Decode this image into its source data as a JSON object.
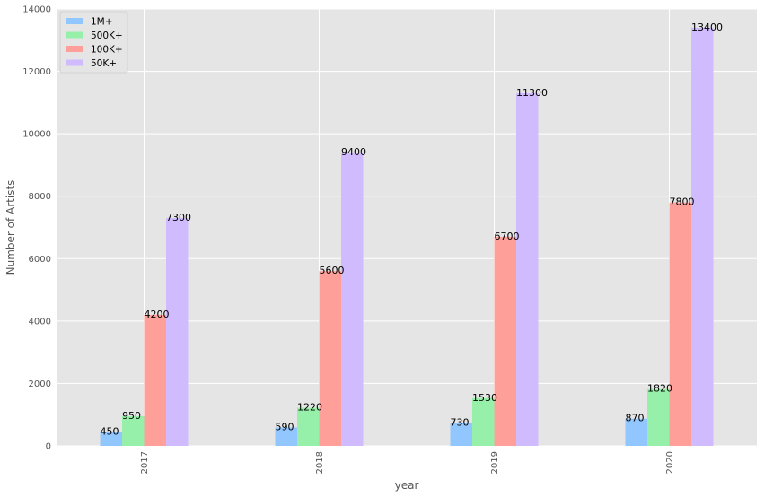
{
  "chart_data": {
    "type": "bar",
    "title": "",
    "xlabel": "year",
    "ylabel": "Number of Artists",
    "categories": [
      "2017",
      "2018",
      "2019",
      "2020"
    ],
    "series": [
      {
        "name": "1M+",
        "color": "#92c6ff",
        "values": [
          450,
          590,
          730,
          870
        ]
      },
      {
        "name": "500K+",
        "color": "#97f0aa",
        "values": [
          950,
          1220,
          1530,
          1820
        ]
      },
      {
        "name": "100K+",
        "color": "#ff9f9a",
        "values": [
          4200,
          5600,
          6700,
          7800
        ]
      },
      {
        "name": "50K+",
        "color": "#d0bbff",
        "values": [
          7300,
          9400,
          11300,
          13400
        ]
      }
    ],
    "ylim": [
      0,
      14000
    ],
    "yticks": [
      0,
      2000,
      4000,
      6000,
      8000,
      10000,
      12000,
      14000
    ],
    "grid": true,
    "legend_position": "top-left",
    "background_color": "#e5e5e5",
    "grid_color": "#ffffff"
  }
}
